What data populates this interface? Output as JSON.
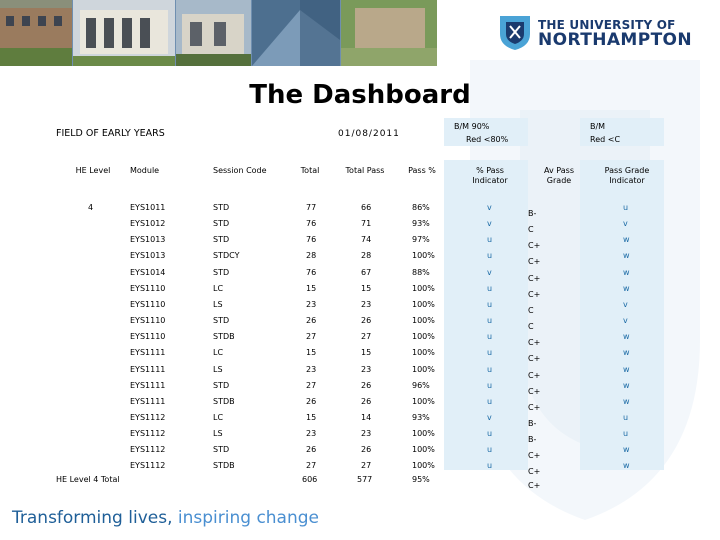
{
  "header": {
    "logo": {
      "line1": "THE UNIVERSITY OF",
      "line2": "NORTHAMPTON"
    }
  },
  "title": "The Dashboard",
  "field": "FIELD OF EARLY YEARS",
  "date": "01/08/2011",
  "bm1": {
    "line1": "B/M 90%",
    "line2": "Red <80%"
  },
  "bm2": {
    "line1": "B/M",
    "line2": "Red <C"
  },
  "columns": [
    "HE Level",
    "Module",
    "Session Code",
    "Total",
    "Total Pass",
    "Pass %",
    "% Pass Indicator",
    "Av Pass Grade",
    "Pass Grade Indicator"
  ],
  "level": "4",
  "rows": [
    {
      "module": "EYS1011",
      "session": "STD",
      "total": "77",
      "pass": "66",
      "pct": "86%",
      "ind": "v",
      "grade": "B-",
      "gind": "u"
    },
    {
      "module": "EYS1012",
      "session": "STD",
      "total": "76",
      "pass": "71",
      "pct": "93%",
      "ind": "v",
      "grade": "C",
      "gind": "v"
    },
    {
      "module": "EYS1013",
      "session": "STD",
      "total": "76",
      "pass": "74",
      "pct": "97%",
      "ind": "u",
      "grade": "C+",
      "gind": "w"
    },
    {
      "module": "EYS1013",
      "session": "STDCY",
      "total": "28",
      "pass": "28",
      "pct": "100%",
      "ind": "u",
      "grade": "C+",
      "gind": "w"
    },
    {
      "module": "EYS1014",
      "session": "STD",
      "total": "76",
      "pass": "67",
      "pct": "88%",
      "ind": "v",
      "grade": "C+",
      "gind": "w"
    },
    {
      "module": "EYS1110",
      "session": "LC",
      "total": "15",
      "pass": "15",
      "pct": "100%",
      "ind": "u",
      "grade": "C+",
      "gind": "w"
    },
    {
      "module": "EYS1110",
      "session": "LS",
      "total": "23",
      "pass": "23",
      "pct": "100%",
      "ind": "u",
      "grade": "C",
      "gind": "v"
    },
    {
      "module": "EYS1110",
      "session": "STD",
      "total": "26",
      "pass": "26",
      "pct": "100%",
      "ind": "u",
      "grade": "C",
      "gind": "v"
    },
    {
      "module": "EYS1110",
      "session": "STDB",
      "total": "27",
      "pass": "27",
      "pct": "100%",
      "ind": "u",
      "grade": "C+",
      "gind": "w"
    },
    {
      "module": "EYS1111",
      "session": "LC",
      "total": "15",
      "pass": "15",
      "pct": "100%",
      "ind": "u",
      "grade": "C+",
      "gind": "w"
    },
    {
      "module": "EYS1111",
      "session": "LS",
      "total": "23",
      "pass": "23",
      "pct": "100%",
      "ind": "u",
      "grade": "C+",
      "gind": "w"
    },
    {
      "module": "EYS1111",
      "session": "STD",
      "total": "27",
      "pass": "26",
      "pct": "96%",
      "ind": "u",
      "grade": "C+",
      "gind": "w"
    },
    {
      "module": "EYS1111",
      "session": "STDB",
      "total": "26",
      "pass": "26",
      "pct": "100%",
      "ind": "u",
      "grade": "C+",
      "gind": "w"
    },
    {
      "module": "EYS1112",
      "session": "LC",
      "total": "15",
      "pass": "14",
      "pct": "93%",
      "ind": "v",
      "grade": "B-",
      "gind": "u"
    },
    {
      "module": "EYS1112",
      "session": "LS",
      "total": "23",
      "pass": "23",
      "pct": "100%",
      "ind": "u",
      "grade": "B-",
      "gind": "u"
    },
    {
      "module": "EYS1112",
      "session": "STD",
      "total": "26",
      "pass": "26",
      "pct": "100%",
      "ind": "u",
      "grade": "C+",
      "gind": "w"
    },
    {
      "module": "EYS1112",
      "session": "STDB",
      "total": "27",
      "pass": "27",
      "pct": "100%",
      "ind": "u",
      "grade": "C+",
      "gind": "w"
    }
  ],
  "total_row": {
    "label": "HE Level 4 Total",
    "total": "606",
    "pass": "577",
    "pct": "95%",
    "grade": "C+"
  },
  "footer": {
    "part1": "Transforming lives, ",
    "part2": "inspiring change"
  },
  "colors": {
    "brand": "#1a3a6e",
    "indicator": "#1b6aa5",
    "benchmark_fill": "#e1eff8",
    "footer": "#1f5f98"
  }
}
